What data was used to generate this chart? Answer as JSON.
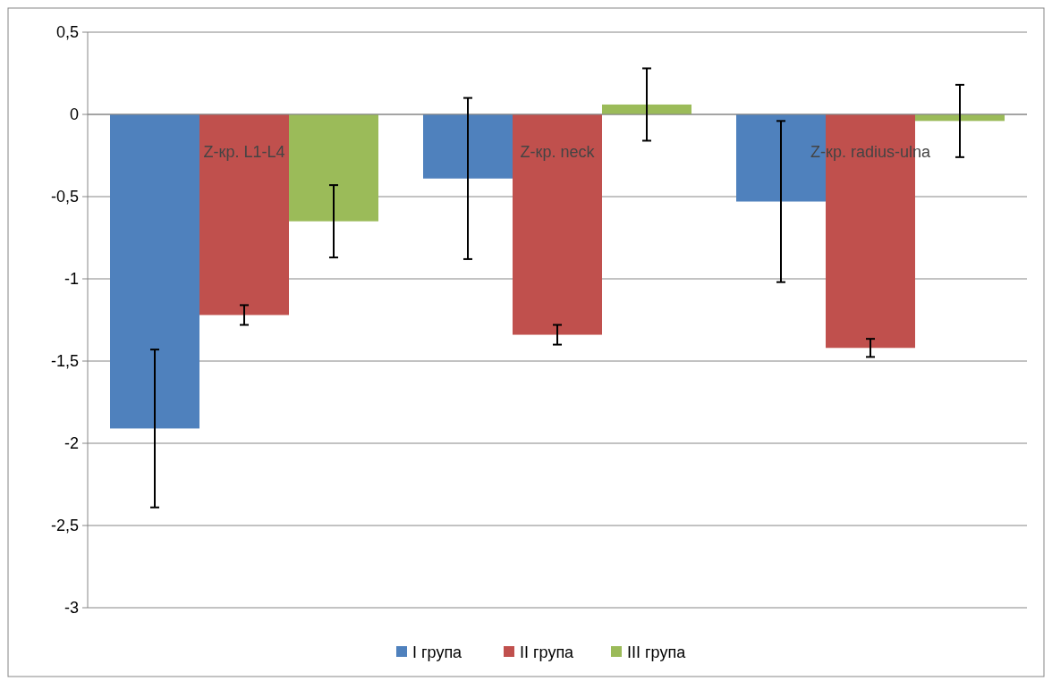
{
  "chart_data": {
    "type": "bar",
    "categories": [
      "Z-кр. L1-L4",
      "Z-кр. neck",
      "Z-кр. radius-ulna"
    ],
    "series": [
      {
        "name": "I група",
        "color": "#4f81bd",
        "values": [
          -1.91,
          -0.39,
          -0.53
        ],
        "errors": [
          0.48,
          0.49,
          0.49
        ]
      },
      {
        "name": "II група",
        "color": "#c0504d",
        "values": [
          -1.22,
          -1.34,
          -1.42
        ],
        "errors": [
          0.06,
          0.06,
          0.055
        ]
      },
      {
        "name": "III група",
        "color": "#9bbb59",
        "values": [
          -0.65,
          0.06,
          -0.04
        ],
        "errors": [
          0.22,
          0.22,
          0.22
        ]
      }
    ],
    "ylim": [
      -3,
      0.5
    ],
    "yticks": [
      {
        "value": -3,
        "label": "-3"
      },
      {
        "value": -2.5,
        "label": "-2,5"
      },
      {
        "value": -2,
        "label": "-2"
      },
      {
        "value": -1.5,
        "label": "-1,5"
      },
      {
        "value": -1,
        "label": "-1"
      },
      {
        "value": -0.5,
        "label": "-0,5"
      },
      {
        "value": 0,
        "label": "0"
      },
      {
        "value": 0.5,
        "label": "0,5"
      }
    ],
    "grid": "y",
    "legend": "bottom"
  }
}
